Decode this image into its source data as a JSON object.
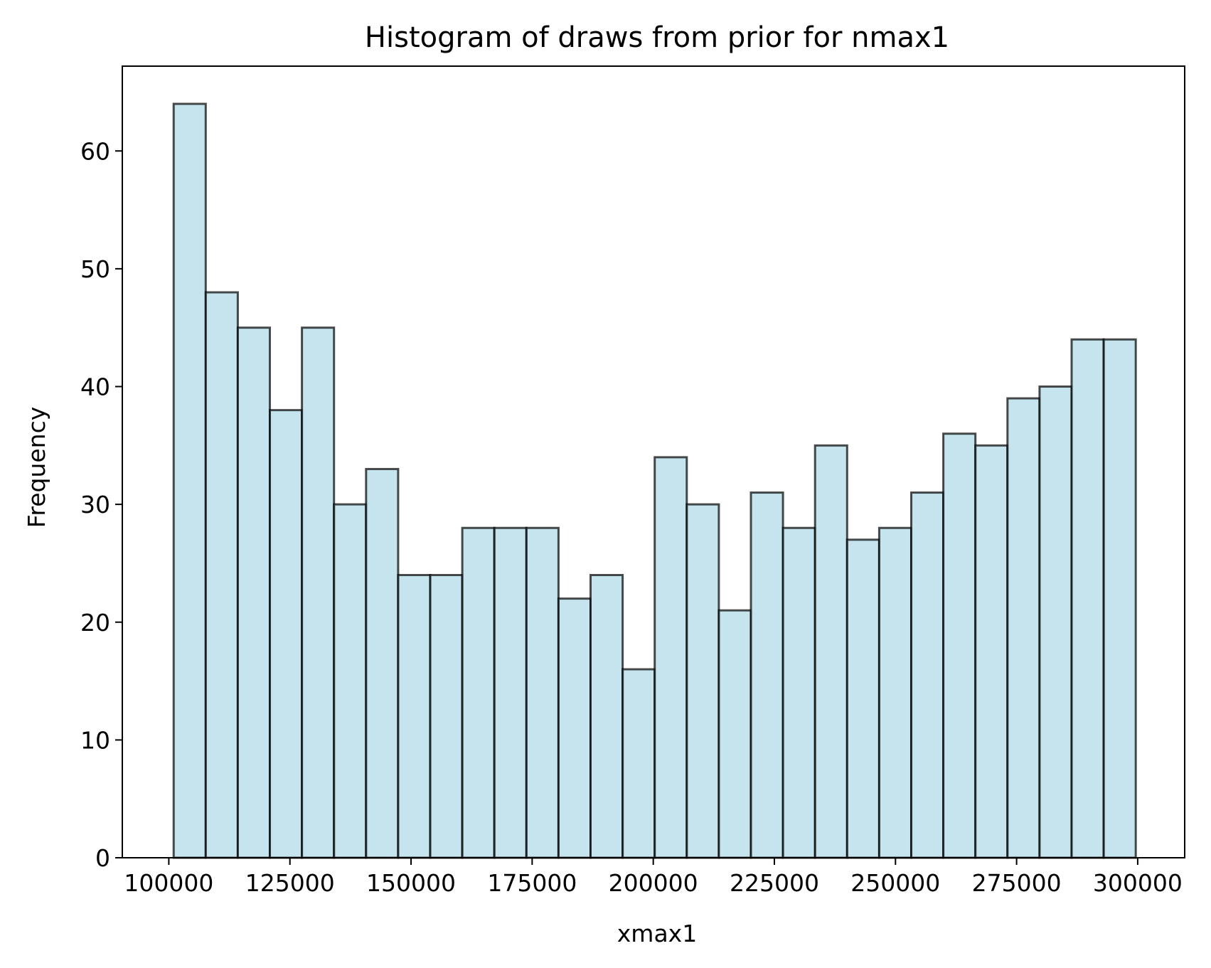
{
  "chart_data": {
    "type": "bar",
    "title": "Histogram of draws from prior for nmax1",
    "xlabel": "xmax1",
    "ylabel": "Frequency",
    "xlim": [
      90400,
      309700
    ],
    "ylim": [
      0,
      67.2
    ],
    "xticks": [
      100000,
      125000,
      150000,
      175000,
      200000,
      225000,
      250000,
      275000,
      300000
    ],
    "xtick_labels": [
      "100000",
      "125000",
      "150000",
      "175000",
      "200000",
      "225000",
      "250000",
      "275000",
      "300000"
    ],
    "yticks": [
      0,
      10,
      20,
      30,
      40,
      50,
      60
    ],
    "ytick_labels": [
      "0",
      "10",
      "20",
      "30",
      "40",
      "50",
      "60"
    ],
    "bins": {
      "start": 101000,
      "end": 299600,
      "count": 30
    },
    "values": [
      64,
      48,
      45,
      38,
      45,
      30,
      33,
      24,
      24,
      28,
      28,
      28,
      22,
      24,
      16,
      34,
      30,
      21,
      31,
      28,
      35,
      27,
      28,
      31,
      36,
      35,
      39,
      40,
      44,
      44
    ],
    "grid": false,
    "legend": "none",
    "colors": {
      "bar_fill": "#add8e6",
      "bar_fill_opacity": 0.7,
      "bar_edge": "#000000",
      "bar_edge_opacity": 0.7,
      "axes": "#000000"
    }
  }
}
